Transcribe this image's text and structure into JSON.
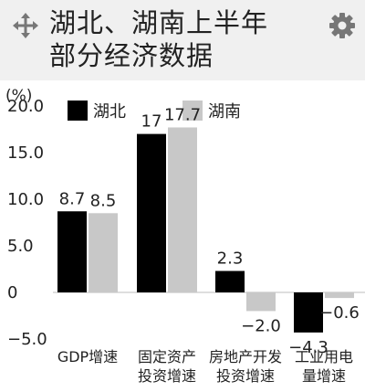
{
  "header": {
    "title_line1": "湖北、湖南上半年",
    "title_line2": "部分经济数据",
    "icons": [
      "move-icon",
      "gear-icon"
    ]
  },
  "chart_data": {
    "type": "bar",
    "ylabel": "(%)",
    "ylim": [
      -5.0,
      20.0
    ],
    "yticks": [
      "20.0",
      "15.0",
      "10.0",
      "5.0",
      "0",
      "−5.0"
    ],
    "ytick_values": [
      20,
      15,
      10,
      5,
      0,
      -5
    ],
    "categories": [
      [
        "GDP增速"
      ],
      [
        "固定资产",
        "投资增速"
      ],
      [
        "房地产开发",
        "投资增速"
      ],
      [
        "工业用电",
        "量增速"
      ]
    ],
    "series": [
      {
        "name": "湖北",
        "color": "#000000",
        "values": [
          8.7,
          17,
          2.3,
          -4.3
        ],
        "labels": [
          "8.7",
          "17",
          "2.3",
          "−4.3"
        ]
      },
      {
        "name": "湖南",
        "color": "#c8c8c8",
        "values": [
          8.5,
          17.7,
          -2.0,
          -0.6
        ],
        "labels": [
          "8.5",
          "17.7",
          "−2.0",
          "−0.6"
        ]
      }
    ],
    "legend": "top"
  }
}
